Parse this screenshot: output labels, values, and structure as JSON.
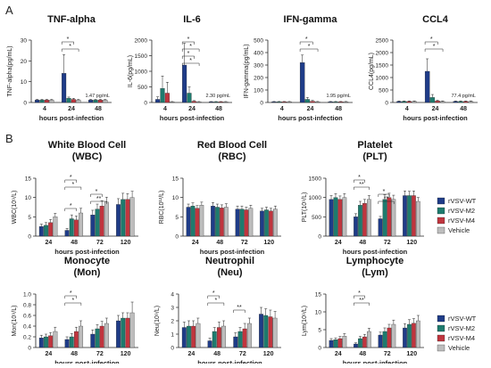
{
  "panel_labels": [
    "A",
    "B"
  ],
  "colors": {
    "rVSV-WT": "#1f3c88",
    "rVSV-M2": "#1e7b6e",
    "rVSV-M4": "#c0353e",
    "Vehicle": "#bdbdbd"
  },
  "legend": {
    "items": [
      {
        "name": "rVSV-WT",
        "color": "#1f3c88"
      },
      {
        "name": "rVSV-M2",
        "color": "#1e7b6e"
      },
      {
        "name": "rVSV-M4",
        "color": "#c0353e"
      },
      {
        "name": "Vehicle",
        "color": "#bdbdbd"
      }
    ]
  },
  "chart_data": [
    {
      "type": "bar",
      "title": "TNF-alpha",
      "subtitle": "",
      "xlabel": "hours post-infection",
      "ylabel": "TNF-alpha(pg/mL)",
      "categories": [
        "4",
        "24",
        "48"
      ],
      "yticks": [
        0,
        10,
        20,
        30
      ],
      "ylim": [
        0,
        30
      ],
      "series": [
        {
          "name": "rVSV-WT",
          "values": [
            1.2,
            14,
            1.2
          ],
          "err": [
            0.3,
            9,
            0.3
          ]
        },
        {
          "name": "rVSV-M2",
          "values": [
            1.2,
            2,
            1.2
          ],
          "err": [
            0.3,
            0.6,
            0.3
          ]
        },
        {
          "name": "rVSV-M4",
          "values": [
            1.2,
            1.5,
            1.2
          ],
          "err": [
            0.3,
            0.5,
            0.3
          ]
        },
        {
          "name": "Vehicle",
          "values": [
            1.2,
            1.2,
            1.2
          ],
          "err": [
            0.3,
            0.3,
            0.3
          ]
        }
      ],
      "annotations": [
        "1.47 pg/mL"
      ],
      "significance": [
        "*",
        "*"
      ]
    },
    {
      "type": "bar",
      "title": "IL-6",
      "subtitle": "",
      "xlabel": "hours post-infection",
      "ylabel": "IL-6(pg/mL)",
      "categories": [
        "4",
        "24",
        "48"
      ],
      "yticks": [
        0,
        500,
        1000,
        1500,
        2000
      ],
      "ylim": [
        0,
        2000
      ],
      "series": [
        {
          "name": "rVSV-WT",
          "values": [
            100,
            1200,
            20
          ],
          "err": [
            80,
            700,
            10
          ]
        },
        {
          "name": "rVSV-M2",
          "values": [
            450,
            300,
            20
          ],
          "err": [
            400,
            200,
            10
          ]
        },
        {
          "name": "rVSV-M4",
          "values": [
            300,
            40,
            20
          ],
          "err": [
            350,
            20,
            10
          ]
        },
        {
          "name": "Vehicle",
          "values": [
            20,
            20,
            20
          ],
          "err": [
            10,
            10,
            10
          ]
        }
      ],
      "annotations": [
        "2.30 pg/mL"
      ],
      "significance": [
        "*",
        "*",
        "*",
        "*"
      ]
    },
    {
      "type": "bar",
      "title": "IFN-gamma",
      "subtitle": "",
      "xlabel": "hours post-infection",
      "ylabel": "IFN-gamma(pg/mL)",
      "categories": [
        "4",
        "24",
        "48"
      ],
      "yticks": [
        0,
        100,
        200,
        300,
        400,
        500
      ],
      "ylim": [
        0,
        500
      ],
      "series": [
        {
          "name": "rVSV-WT",
          "values": [
            5,
            320,
            5
          ],
          "err": [
            3,
            60,
            3
          ]
        },
        {
          "name": "rVSV-M2",
          "values": [
            5,
            25,
            5
          ],
          "err": [
            3,
            15,
            3
          ]
        },
        {
          "name": "rVSV-M4",
          "values": [
            5,
            10,
            5
          ],
          "err": [
            3,
            6,
            3
          ]
        },
        {
          "name": "Vehicle",
          "values": [
            5,
            5,
            5
          ],
          "err": [
            3,
            3,
            3
          ]
        }
      ],
      "annotations": [
        "1.95 pg/mL"
      ],
      "significance": [
        "*",
        "*"
      ]
    },
    {
      "type": "bar",
      "title": "CCL4",
      "subtitle": "",
      "xlabel": "hours post-infection",
      "ylabel": "CCL4(pg/mL)",
      "categories": [
        "4",
        "24",
        "48"
      ],
      "yticks": [
        0,
        500,
        1000,
        1500,
        2000,
        2500
      ],
      "ylim": [
        0,
        2500
      ],
      "series": [
        {
          "name": "rVSV-WT",
          "values": [
            40,
            1250,
            40
          ],
          "err": [
            20,
            500,
            20
          ]
        },
        {
          "name": "rVSV-M2",
          "values": [
            40,
            200,
            40
          ],
          "err": [
            20,
            120,
            20
          ]
        },
        {
          "name": "rVSV-M4",
          "values": [
            40,
            60,
            40
          ],
          "err": [
            20,
            30,
            20
          ]
        },
        {
          "name": "Vehicle",
          "values": [
            40,
            40,
            40
          ],
          "err": [
            20,
            20,
            20
          ]
        }
      ],
      "annotations": [
        "77.4 pg/mL"
      ],
      "significance": [
        "*",
        "*"
      ]
    },
    {
      "type": "bar",
      "title": "White Blood Cell",
      "subtitle": "(WBC)",
      "xlabel": "hours post-infection",
      "ylabel": "WBC(10⁹/L)",
      "categories": [
        "24",
        "48",
        "72",
        "120"
      ],
      "yticks": [
        0,
        5,
        10,
        15
      ],
      "ylim": [
        0,
        15
      ],
      "series": [
        {
          "name": "rVSV-WT",
          "values": [
            2.5,
            1.5,
            5.5,
            8.2
          ],
          "err": [
            0.6,
            0.5,
            1.2,
            1.5
          ]
        },
        {
          "name": "rVSV-M2",
          "values": [
            2.8,
            4.5,
            7,
            9.5
          ],
          "err": [
            0.7,
            1,
            1.3,
            1.6
          ]
        },
        {
          "name": "rVSV-M4",
          "values": [
            3.5,
            4.2,
            7.8,
            9.5
          ],
          "err": [
            0.8,
            1,
            1.4,
            1.5
          ]
        },
        {
          "name": "Vehicle",
          "values": [
            5,
            6,
            8.8,
            10
          ],
          "err": [
            0.9,
            1.2,
            1.3,
            1.6
          ]
        }
      ],
      "significance": [
        "*",
        "*",
        "*",
        "**",
        "*"
      ]
    },
    {
      "type": "bar",
      "title": "Red Blood Cell",
      "subtitle": "(RBC)",
      "xlabel": "hours post-infection",
      "ylabel": "RBC(10¹²/L)",
      "categories": [
        "24",
        "48",
        "72",
        "120"
      ],
      "yticks": [
        0,
        5,
        10,
        15
      ],
      "ylim": [
        0,
        15
      ],
      "series": [
        {
          "name": "rVSV-WT",
          "values": [
            7.5,
            7.8,
            7,
            6.5
          ],
          "err": [
            0.8,
            0.9,
            0.8,
            0.7
          ]
        },
        {
          "name": "rVSV-M2",
          "values": [
            7.8,
            7.5,
            7,
            6.8
          ],
          "err": [
            0.8,
            0.8,
            0.8,
            0.7
          ]
        },
        {
          "name": "rVSV-M4",
          "values": [
            7.2,
            7.3,
            6.8,
            6.5
          ],
          "err": [
            0.7,
            0.8,
            0.7,
            0.7
          ]
        },
        {
          "name": "Vehicle",
          "values": [
            8,
            7.5,
            7.2,
            7
          ],
          "err": [
            0.8,
            0.9,
            0.8,
            0.8
          ]
        }
      ],
      "significance": []
    },
    {
      "type": "bar",
      "title": "Platelet",
      "subtitle": "(PLT)",
      "xlabel": "hours post-infection",
      "ylabel": "PLT(10⁹/L)",
      "categories": [
        "24",
        "48",
        "72",
        "120"
      ],
      "yticks": [
        0,
        500,
        1000,
        1500
      ],
      "ylim": [
        0,
        1500
      ],
      "series": [
        {
          "name": "rVSV-WT",
          "values": [
            950,
            500,
            450,
            1050
          ],
          "err": [
            100,
            80,
            60,
            120
          ]
        },
        {
          "name": "rVSV-M2",
          "values": [
            1000,
            800,
            950,
            1050
          ],
          "err": [
            100,
            100,
            120,
            110
          ]
        },
        {
          "name": "rVSV-M4",
          "values": [
            950,
            850,
            1000,
            1050
          ],
          "err": [
            90,
            100,
            110,
            120
          ]
        },
        {
          "name": "Vehicle",
          "values": [
            1000,
            950,
            950,
            900
          ],
          "err": [
            100,
            100,
            110,
            100
          ]
        }
      ],
      "significance": [
        "*",
        "**",
        "*",
        "**"
      ]
    },
    {
      "type": "bar",
      "title": "Monocyte",
      "subtitle": "(Mon)",
      "xlabel": "hours post-infection",
      "ylabel": "Mon(10⁹/L)",
      "categories": [
        "24",
        "48",
        "72",
        "120"
      ],
      "yticks": [
        0,
        0.2,
        0.4,
        0.6,
        0.8,
        1.0
      ],
      "ylim": [
        0,
        1.0
      ],
      "series": [
        {
          "name": "rVSV-WT",
          "values": [
            0.18,
            0.15,
            0.25,
            0.5
          ],
          "err": [
            0.05,
            0.05,
            0.08,
            0.1
          ]
        },
        {
          "name": "rVSV-M2",
          "values": [
            0.2,
            0.2,
            0.35,
            0.55
          ],
          "err": [
            0.05,
            0.06,
            0.08,
            0.1
          ]
        },
        {
          "name": "rVSV-M4",
          "values": [
            0.22,
            0.3,
            0.4,
            0.55
          ],
          "err": [
            0.06,
            0.08,
            0.09,
            0.1
          ]
        },
        {
          "name": "Vehicle",
          "values": [
            0.3,
            0.4,
            0.45,
            0.65
          ],
          "err": [
            0.08,
            0.1,
            0.1,
            0.2
          ]
        }
      ],
      "significance": [
        "*",
        "*"
      ]
    },
    {
      "type": "bar",
      "title": "Neutrophil",
      "subtitle": "(Neu)",
      "xlabel": "hours post-infection",
      "ylabel": "Neu(10⁹/L)",
      "categories": [
        "24",
        "48",
        "72",
        "120"
      ],
      "yticks": [
        0,
        1,
        2,
        3,
        4
      ],
      "ylim": [
        0,
        4
      ],
      "series": [
        {
          "name": "rVSV-WT",
          "values": [
            1.5,
            0.5,
            0.8,
            2.5
          ],
          "err": [
            0.4,
            0.2,
            0.3,
            0.5
          ]
        },
        {
          "name": "rVSV-M2",
          "values": [
            1.6,
            1.2,
            1.2,
            2.4
          ],
          "err": [
            0.4,
            0.3,
            0.3,
            0.5
          ]
        },
        {
          "name": "rVSV-M4",
          "values": [
            1.6,
            1.5,
            1.4,
            2.3
          ],
          "err": [
            0.4,
            0.4,
            0.4,
            0.5
          ]
        },
        {
          "name": "Vehicle",
          "values": [
            1.8,
            1.6,
            1.8,
            2.2
          ],
          "err": [
            0.4,
            0.4,
            0.4,
            0.5
          ]
        }
      ],
      "significance": [
        "*",
        "*",
        "**"
      ]
    },
    {
      "type": "bar",
      "title": "Lymphocyte",
      "subtitle": "(Lym)",
      "xlabel": "hours post-infection",
      "ylabel": "Lym(10⁹/L)",
      "categories": [
        "24",
        "48",
        "72",
        "120"
      ],
      "yticks": [
        0,
        5,
        10,
        15
      ],
      "ylim": [
        0,
        15
      ],
      "series": [
        {
          "name": "rVSV-WT",
          "values": [
            2,
            1,
            3.5,
            5.5
          ],
          "err": [
            0.5,
            0.3,
            0.8,
            1.2
          ]
        },
        {
          "name": "rVSV-M2",
          "values": [
            2.2,
            2.5,
            4.5,
            6.5
          ],
          "err": [
            0.5,
            0.6,
            1,
            1.3
          ]
        },
        {
          "name": "rVSV-M4",
          "values": [
            2.5,
            3,
            5.5,
            6.8
          ],
          "err": [
            0.6,
            0.7,
            1,
            1.3
          ]
        },
        {
          "name": "Vehicle",
          "values": [
            3.2,
            4.5,
            6.5,
            7.5
          ],
          "err": [
            0.7,
            0.9,
            1.2,
            1.5
          ]
        }
      ],
      "significance": [
        "*",
        "**"
      ]
    }
  ]
}
